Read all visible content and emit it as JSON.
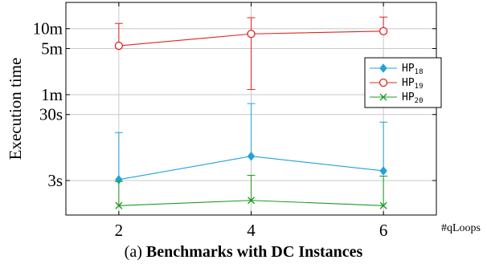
{
  "chart_data": {
    "type": "line",
    "xlabel_suffix": "#qLoops",
    "ylabel": "Execution time",
    "y_scale": "log",
    "y_unit": "seconds",
    "x": [
      2,
      4,
      6
    ],
    "xlim": [
      1.2,
      6.8
    ],
    "ylim": [
      0.9,
      1500
    ],
    "x_ticks": [
      2,
      4,
      6
    ],
    "y_ticks": [
      {
        "value": 3,
        "label": "3s"
      },
      {
        "value": 30,
        "label": "30s"
      },
      {
        "value": 60,
        "label": "1m"
      },
      {
        "value": 300,
        "label": "5m"
      },
      {
        "value": 600,
        "label": "10m"
      }
    ],
    "grid": true,
    "legend_position": "right",
    "series": [
      {
        "name": "HP",
        "sub": "18",
        "color": "#1fa3d9",
        "marker": "diamond",
        "values": [
          3.1,
          7.0,
          4.2
        ],
        "err_high": [
          16,
          44,
          23
        ]
      },
      {
        "name": "HP",
        "sub": "19",
        "color": "#e02424",
        "marker": "circle",
        "values": [
          330,
          500,
          550
        ],
        "err_high": [
          720,
          880,
          900
        ],
        "err_low": [
          null,
          72,
          null
        ]
      },
      {
        "name": "HP",
        "sub": "20",
        "color": "#1f9a1f",
        "marker": "cross",
        "values": [
          1.25,
          1.5,
          1.25
        ],
        "err_high": [
          2.9,
          3.6,
          3.5
        ]
      }
    ]
  },
  "caption": {
    "prefix": "(a) ",
    "title": "Benchmarks with DC Instances"
  }
}
